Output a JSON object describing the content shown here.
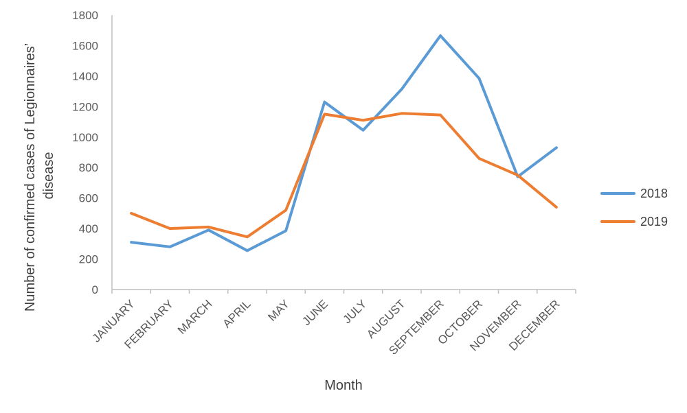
{
  "chart_data": {
    "type": "line",
    "title": "",
    "xlabel": "Month",
    "ylabel_lines": [
      "Number of confirmed cases of Legionnaires’",
      "disease"
    ],
    "categories": [
      "JANUARY",
      "FEBRUARY",
      "MARCH",
      "APRIL",
      "MAY",
      "JUNE",
      "JULY",
      "AUGUST",
      "SEPTEMBER",
      "OCTOBER",
      "NOVEMBER",
      "DECEMBER"
    ],
    "ylim": [
      0,
      1800
    ],
    "yticks": [
      0,
      200,
      400,
      600,
      800,
      1000,
      1200,
      1400,
      1600,
      1800
    ],
    "grid": false,
    "legend_position": "right",
    "series": [
      {
        "name": "2018",
        "color": "#5B9BD5",
        "values": [
          310,
          280,
          390,
          255,
          385,
          1230,
          1045,
          1315,
          1665,
          1385,
          740,
          930
        ]
      },
      {
        "name": "2019",
        "color": "#ED7D31",
        "values": [
          500,
          400,
          410,
          345,
          520,
          1150,
          1110,
          1155,
          1145,
          860,
          750,
          540
        ]
      }
    ]
  }
}
